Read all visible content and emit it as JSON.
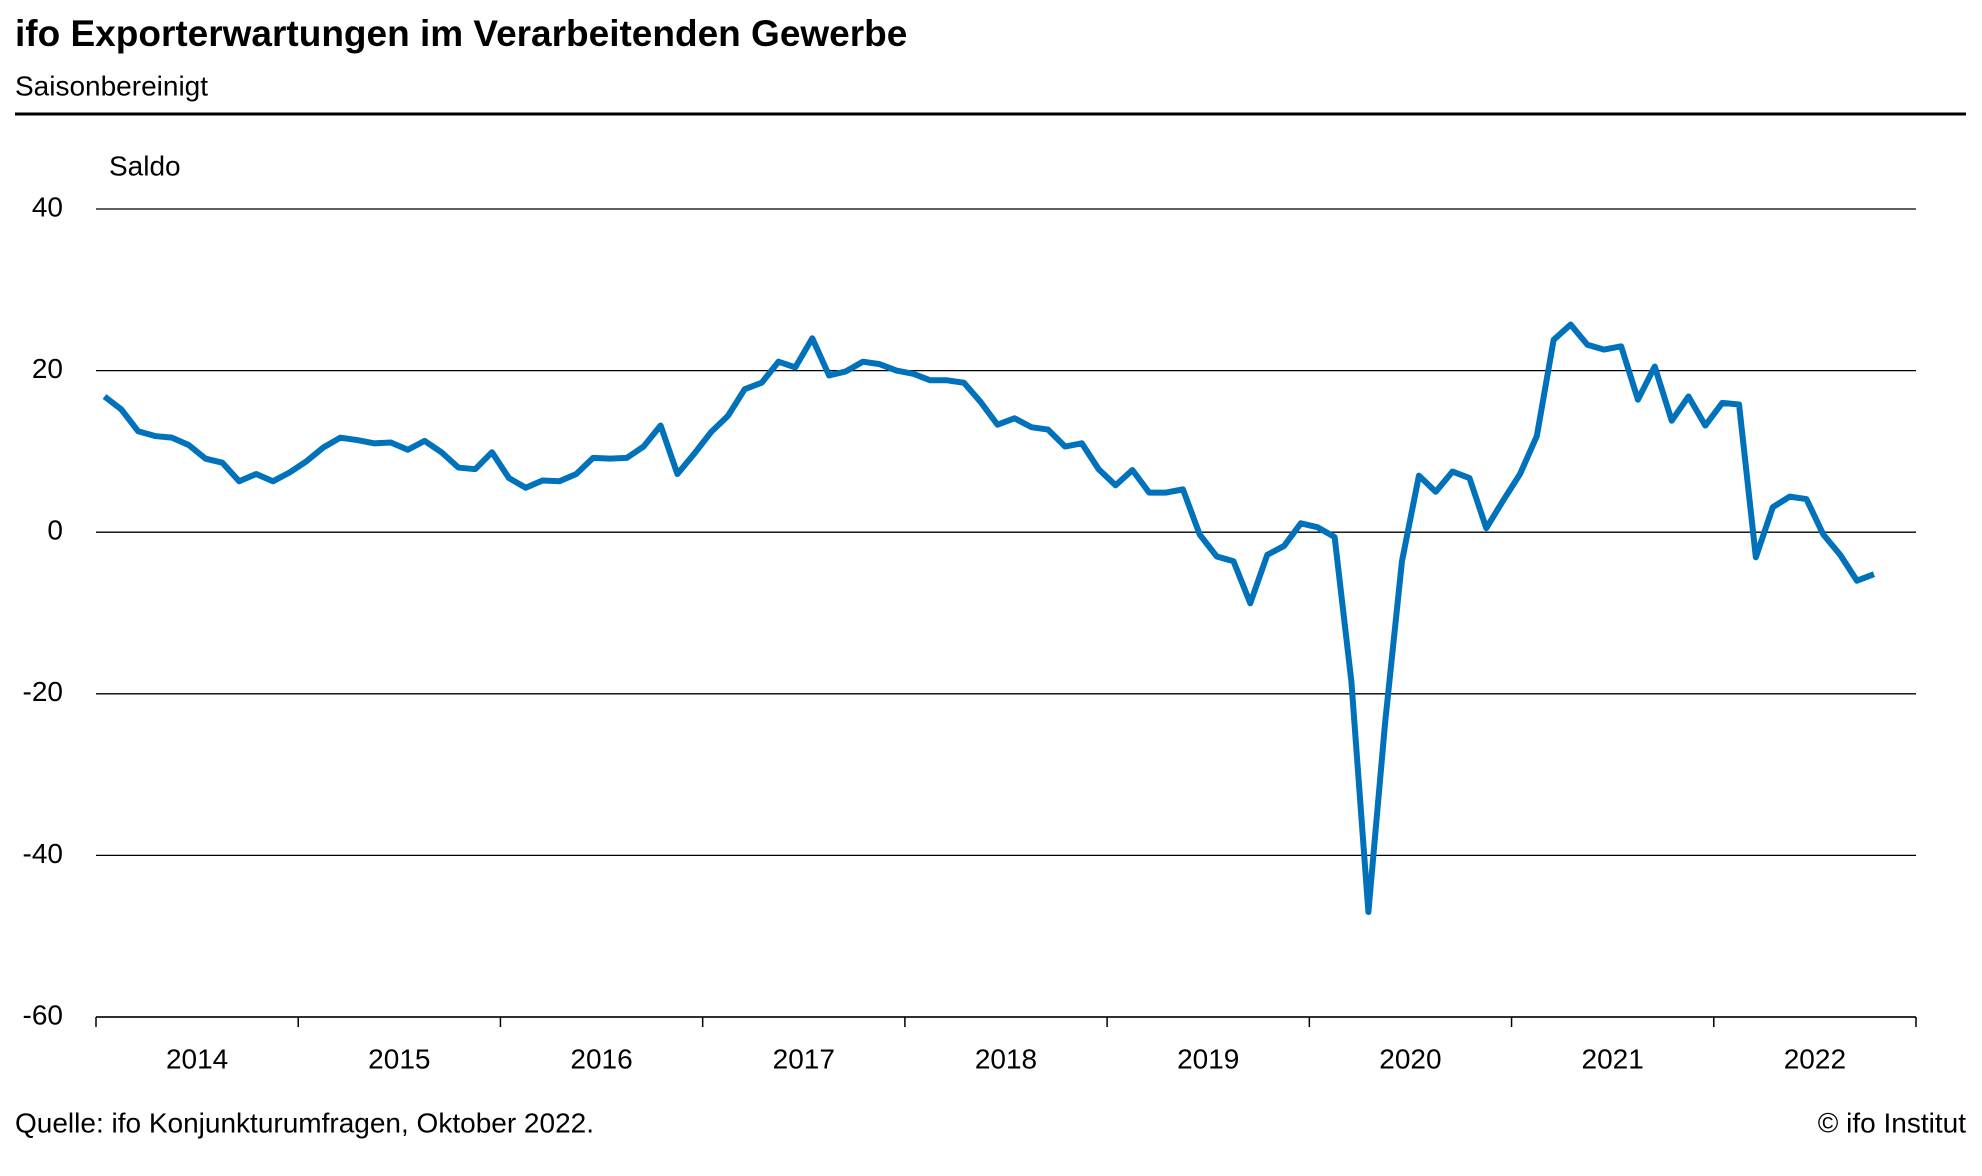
{
  "chart_data": {
    "type": "line",
    "title": "ifo Exporterwartungen im Verarbeitenden Gewerbe",
    "subtitle": "Saisonbereinigt",
    "y_label": "Saldo",
    "source": "Quelle: ifo Konjunkturumfragen, Oktober 2022.",
    "copyright": "© ifo Institut",
    "xlim": [
      2014,
      2023
    ],
    "xticks": [
      2014,
      2015,
      2016,
      2017,
      2018,
      2019,
      2020,
      2021,
      2022,
      2023
    ],
    "xtick_labels": [
      {
        "value": 2014.5,
        "label": "2014"
      },
      {
        "value": 2015.5,
        "label": "2015"
      },
      {
        "value": 2016.5,
        "label": "2016"
      },
      {
        "value": 2017.5,
        "label": "2017"
      },
      {
        "value": 2018.5,
        "label": "2018"
      },
      {
        "value": 2019.5,
        "label": "2019"
      },
      {
        "value": 2020.5,
        "label": "2020"
      },
      {
        "value": 2021.5,
        "label": "2021"
      },
      {
        "value": 2022.5,
        "label": "2022"
      }
    ],
    "ylim": [
      -60,
      40
    ],
    "yticks": [
      -60,
      -40,
      -20,
      0,
      20,
      40
    ],
    "grid": true,
    "x": [
      2014.042,
      2014.125,
      2014.208,
      2014.292,
      2014.375,
      2014.458,
      2014.542,
      2014.625,
      2014.708,
      2014.792,
      2014.875,
      2014.958,
      2015.042,
      2015.125,
      2015.208,
      2015.292,
      2015.375,
      2015.458,
      2015.542,
      2015.625,
      2015.708,
      2015.792,
      2015.875,
      2015.958,
      2016.042,
      2016.125,
      2016.208,
      2016.292,
      2016.375,
      2016.458,
      2016.542,
      2016.625,
      2016.708,
      2016.792,
      2016.875,
      2016.958,
      2017.042,
      2017.125,
      2017.208,
      2017.292,
      2017.375,
      2017.458,
      2017.542,
      2017.625,
      2017.708,
      2017.792,
      2017.875,
      2017.958,
      2018.042,
      2018.125,
      2018.208,
      2018.292,
      2018.375,
      2018.458,
      2018.542,
      2018.625,
      2018.708,
      2018.792,
      2018.875,
      2018.958,
      2019.042,
      2019.125,
      2019.208,
      2019.292,
      2019.375,
      2019.458,
      2019.542,
      2019.625,
      2019.708,
      2019.792,
      2019.875,
      2019.958,
      2020.042,
      2020.125,
      2020.208,
      2020.292,
      2020.375,
      2020.458,
      2020.542,
      2020.625,
      2020.708,
      2020.792,
      2020.875,
      2020.958,
      2021.042,
      2021.125,
      2021.208,
      2021.292,
      2021.375,
      2021.458,
      2021.542,
      2021.625,
      2021.708,
      2021.792,
      2021.875,
      2021.958,
      2022.042,
      2022.125,
      2022.208,
      2022.292,
      2022.375,
      2022.458,
      2022.542,
      2022.625,
      2022.708,
      2022.792
    ],
    "series": [
      {
        "name": "Exporterwartungen",
        "color": "#0072bc",
        "values": [
          16.8,
          15.2,
          12.5,
          11.9,
          11.7,
          10.8,
          9.1,
          8.6,
          6.3,
          7.2,
          6.3,
          7.4,
          8.8,
          10.5,
          11.7,
          11.4,
          11.0,
          11.1,
          10.2,
          11.3,
          9.9,
          8.0,
          7.8,
          9.9,
          6.7,
          5.5,
          6.4,
          6.3,
          7.2,
          9.2,
          9.1,
          9.2,
          10.6,
          13.2,
          7.2,
          9.7,
          12.4,
          14.4,
          17.7,
          18.5,
          21.1,
          20.4,
          24.0,
          19.4,
          19.9,
          21.1,
          20.8,
          20.0,
          19.6,
          18.8,
          18.8,
          18.5,
          16.1,
          13.3,
          14.1,
          13.0,
          12.7,
          10.6,
          11.0,
          7.8,
          5.8,
          7.7,
          4.9,
          4.9,
          5.3,
          -0.3,
          -3.0,
          -3.6,
          -8.8,
          -2.8,
          -1.7,
          1.1,
          0.6,
          -0.6,
          -18.5,
          -47.0,
          -23.5,
          -3.6,
          7.0,
          5.0,
          7.5,
          6.7,
          0.5,
          3.9,
          7.2,
          11.9,
          23.8,
          25.7,
          23.2,
          22.6,
          23.0,
          16.4,
          20.5,
          13.8,
          16.8,
          13.2,
          16.0,
          15.8,
          -3.1,
          3.1,
          4.4,
          4.1,
          -0.3,
          -2.8,
          -6.0,
          -5.2
        ]
      }
    ]
  }
}
